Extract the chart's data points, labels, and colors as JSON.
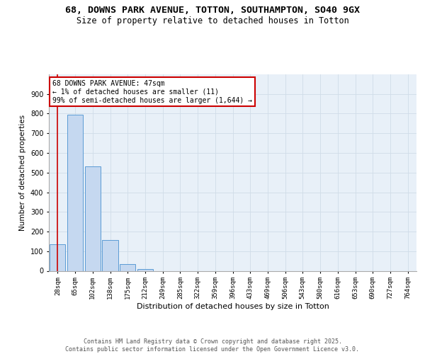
{
  "title1": "68, DOWNS PARK AVENUE, TOTTON, SOUTHAMPTON, SO40 9GX",
  "title2": "Size of property relative to detached houses in Totton",
  "xlabel": "Distribution of detached houses by size in Totton",
  "ylabel": "Number of detached properties",
  "bar_labels": [
    "28sqm",
    "65sqm",
    "102sqm",
    "138sqm",
    "175sqm",
    "212sqm",
    "249sqm",
    "285sqm",
    "322sqm",
    "359sqm",
    "396sqm",
    "433sqm",
    "469sqm",
    "506sqm",
    "543sqm",
    "580sqm",
    "616sqm",
    "653sqm",
    "690sqm",
    "727sqm",
    "764sqm"
  ],
  "bar_values": [
    136,
    793,
    530,
    158,
    35,
    8,
    0,
    0,
    0,
    0,
    0,
    0,
    0,
    0,
    0,
    0,
    0,
    0,
    0,
    0,
    0
  ],
  "bar_color": "#c5d8f0",
  "bar_edge_color": "#5b9bd5",
  "annotation_line1": "68 DOWNS PARK AVENUE: 47sqm",
  "annotation_line2": "← 1% of detached houses are smaller (11)",
  "annotation_line3": "99% of semi-detached houses are larger (1,644) →",
  "annotation_box_color": "#ffffff",
  "annotation_box_edge_color": "#cc0000",
  "vline_color": "#cc0000",
  "ylim": [
    0,
    1000
  ],
  "yticks": [
    0,
    100,
    200,
    300,
    400,
    500,
    600,
    700,
    800,
    900
  ],
  "grid_color": "#d0dce8",
  "bg_color": "#e8f0f8",
  "footer_text": "Contains HM Land Registry data © Crown copyright and database right 2025.\nContains public sector information licensed under the Open Government Licence v3.0.",
  "title_fontsize": 9.5,
  "subtitle_fontsize": 8.5,
  "annot_fontsize": 7,
  "tick_fontsize": 6.5,
  "ylabel_fontsize": 7.5,
  "xlabel_fontsize": 8,
  "footer_fontsize": 6
}
